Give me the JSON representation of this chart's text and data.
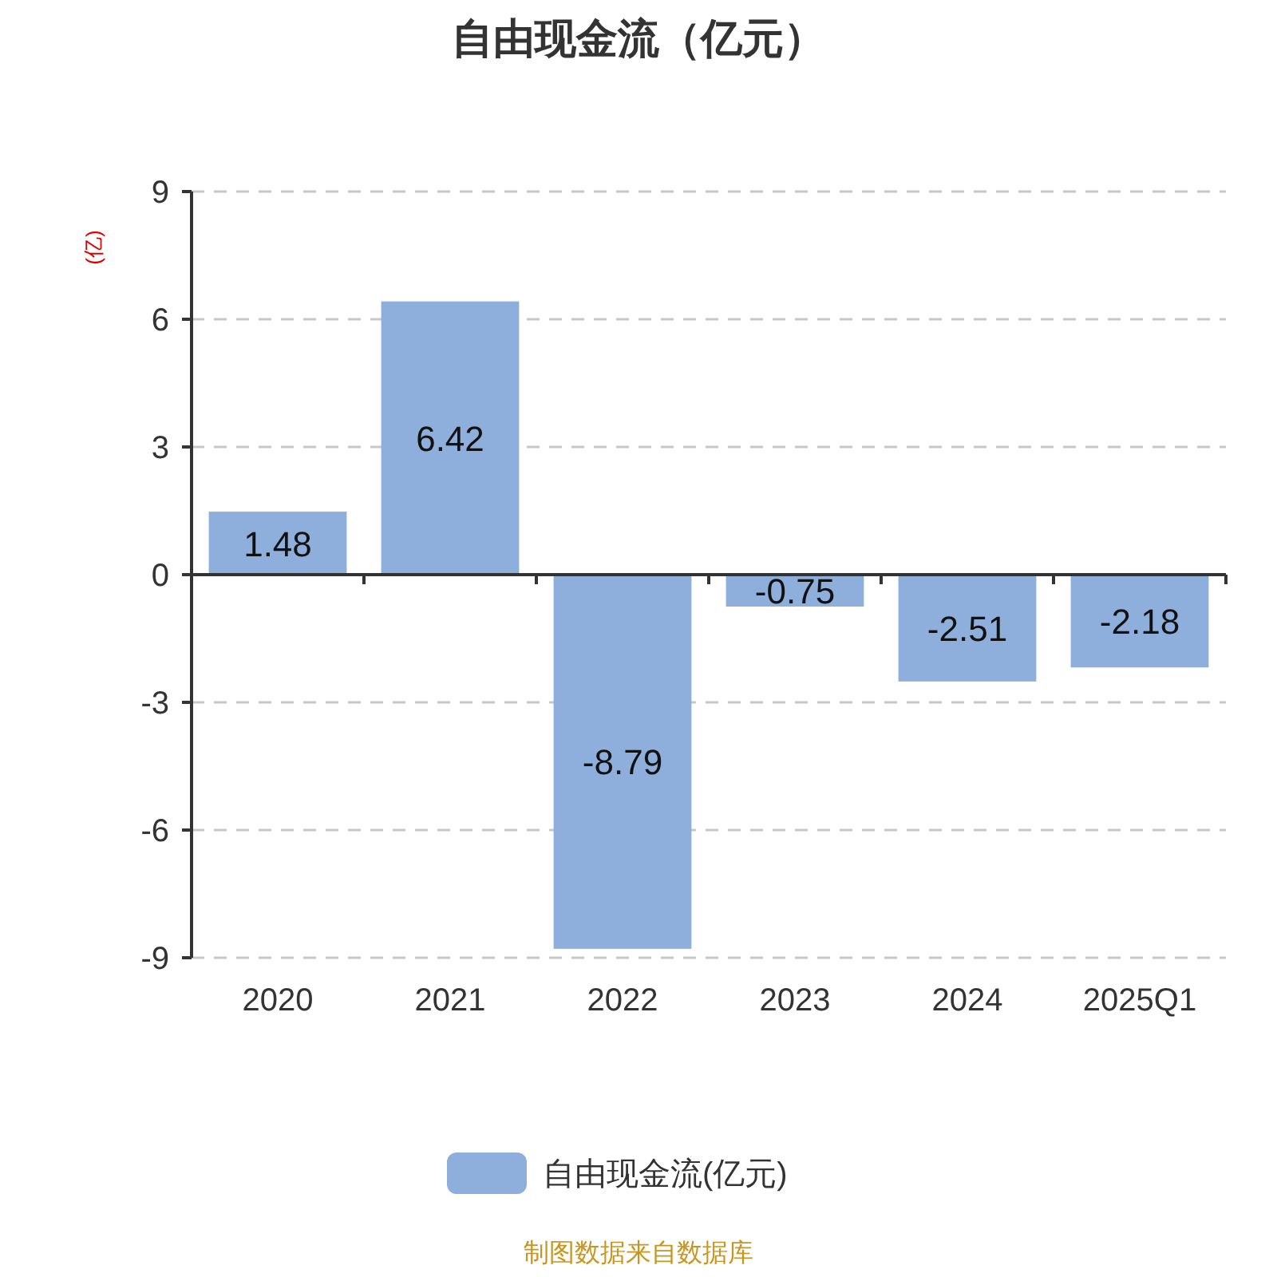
{
  "chart_data": {
    "type": "bar",
    "title": "自由现金流（亿元）",
    "ylabel": "(亿)",
    "categories": [
      "2020",
      "2021",
      "2022",
      "2023",
      "2024",
      "2025Q1"
    ],
    "series": [
      {
        "name": "自由现金流(亿元)",
        "color": "#8eaedb",
        "values": [
          1.48,
          6.42,
          -8.79,
          -0.75,
          -2.51,
          -2.18
        ]
      }
    ],
    "ylim": [
      -9,
      9
    ],
    "yticks": [
      -9,
      -6,
      -3,
      0,
      3,
      6,
      9
    ],
    "grid": "y",
    "legend": "bottom",
    "data_labels": true,
    "annotations": [
      "制图数据来自数据库"
    ]
  }
}
